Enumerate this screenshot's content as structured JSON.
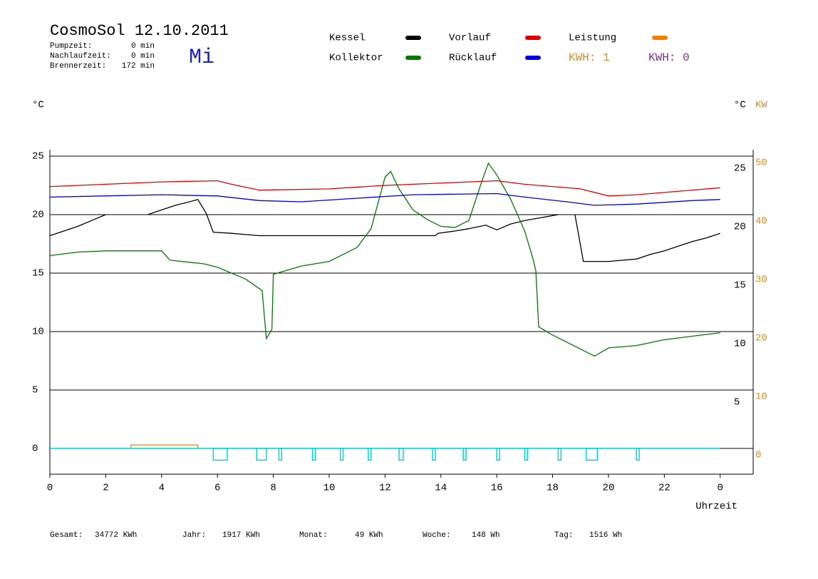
{
  "header": {
    "title": "CosmoSol 12.10.2011",
    "weekday": "Mi",
    "stats": [
      [
        "Pumpzeit:",
        "0 min"
      ],
      [
        "Nachlaufzeit:",
        "0 min"
      ],
      [
        "Brennerzeit:",
        "172 min"
      ]
    ],
    "kwh": [
      {
        "text": "KWH: 1",
        "color": "#e08a1e"
      },
      {
        "text": "KWH: 0",
        "color": "#8b2a8b"
      }
    ]
  },
  "chart_data": {
    "type": "line",
    "y_unit": "°C",
    "y2_unit_c": "°C",
    "y2_unit": "KW",
    "x_label": "Uhrzeit",
    "xlim": [
      0,
      25.18
    ],
    "xticks": [
      0,
      2,
      4,
      6,
      8,
      10,
      12,
      14,
      16,
      18,
      20,
      22,
      {
        "value": 24,
        "label": "0"
      }
    ],
    "ylim": [
      -2.2,
      25.55
    ],
    "yticks": [
      0,
      5,
      10,
      15,
      20,
      25
    ],
    "yticks_right": [
      5,
      10,
      15,
      20,
      25
    ],
    "y2lim": [
      -4.4,
      51.1
    ],
    "y2ticks": [
      0,
      10,
      20,
      30,
      40,
      50
    ],
    "grid": true,
    "series": [
      {
        "name": "Kessel",
        "color": "#000000",
        "x": [
          0,
          0.5,
          1,
          1.5,
          2,
          2.5,
          3.5,
          4,
          4.5,
          5,
          5.3,
          5.6,
          5.85,
          6.5,
          7,
          7.5,
          10,
          13.8,
          13.9,
          14.5,
          15,
          15.6,
          16,
          16.5,
          17,
          17.5,
          18.2,
          18.5,
          18.8,
          19.1,
          20,
          21,
          21.5,
          22,
          22.5,
          23,
          23.5,
          24
        ],
        "values": [
          18.2,
          18.6,
          19.0,
          19.5,
          20.0,
          null,
          20.0,
          20.4,
          20.8,
          21.1,
          21.3,
          20.1,
          18.5,
          18.4,
          18.3,
          18.2,
          18.2,
          18.2,
          18.4,
          18.6,
          18.8,
          19.1,
          18.7,
          19.2,
          19.5,
          19.7,
          20.0,
          null,
          20.0,
          16.0,
          16.0,
          16.2,
          16.6,
          16.9,
          17.3,
          17.7,
          18.0,
          18.4
        ]
      },
      {
        "name": "Kollektor",
        "color": "#007a00",
        "x": [
          0,
          1,
          2,
          3,
          4,
          4.3,
          5.5,
          6,
          7,
          7.6,
          7.75,
          7.95,
          8.0,
          9,
          10,
          11,
          11.5,
          12,
          12.2,
          12.5,
          13,
          13.5,
          14,
          14.5,
          15,
          15.5,
          15.7,
          16,
          16.5,
          17,
          17.3,
          17.4,
          17.5,
          18,
          19,
          19.5,
          20,
          21,
          22,
          23,
          24
        ],
        "values": [
          16.5,
          16.8,
          16.9,
          16.9,
          16.9,
          16.1,
          15.8,
          15.5,
          14.5,
          13.5,
          9.4,
          10.2,
          14.9,
          15.6,
          16.0,
          17.2,
          18.8,
          23.2,
          23.7,
          22.2,
          20.4,
          19.6,
          19.0,
          18.9,
          19.5,
          23.1,
          24.4,
          23.4,
          21.3,
          18.6,
          16.2,
          15.2,
          10.4,
          9.7,
          8.5,
          7.9,
          8.6,
          8.8,
          9.3,
          9.6,
          9.9
        ]
      },
      {
        "name": "Vorlauf",
        "color": "#e00000",
        "x": [
          0,
          2,
          4,
          6,
          6.5,
          7.5,
          10,
          12,
          15,
          16,
          17,
          19,
          20,
          21,
          23,
          24
        ],
        "values": [
          22.4,
          22.6,
          22.8,
          22.9,
          22.6,
          22.1,
          22.2,
          22.5,
          22.8,
          22.9,
          22.6,
          22.2,
          21.6,
          21.7,
          22.1,
          22.3
        ]
      },
      {
        "name": "Rücklauf",
        "color": "#0000e0",
        "x": [
          0,
          4,
          6,
          7.5,
          9,
          11,
          13,
          16,
          17,
          18.5,
          19.5,
          21,
          23,
          24
        ],
        "values": [
          21.5,
          21.7,
          21.6,
          21.2,
          21.1,
          21.4,
          21.7,
          21.8,
          21.5,
          21.1,
          20.8,
          20.9,
          21.2,
          21.3
        ]
      },
      {
        "name": "Leistung",
        "color": "#f08000",
        "axis": "y2",
        "x": [
          2.9,
          2.9,
          5.3,
          5.3
        ],
        "values": [
          0,
          0.6,
          0.6,
          0
        ]
      }
    ],
    "pump": {
      "color": "#00d8d8",
      "low": -1,
      "intervals": [
        [
          5.85,
          6.35
        ],
        [
          7.4,
          7.75
        ],
        [
          8.2,
          8.3
        ],
        [
          9.4,
          9.5
        ],
        [
          10.4,
          10.5
        ],
        [
          11.4,
          11.5
        ],
        [
          12.5,
          12.65
        ],
        [
          13.7,
          13.8
        ],
        [
          14.8,
          14.9
        ],
        [
          16.0,
          16.1
        ],
        [
          17.0,
          17.1
        ],
        [
          18.2,
          18.3
        ],
        [
          19.2,
          19.6
        ],
        [
          21.0,
          21.1
        ]
      ]
    }
  },
  "footer": [
    [
      "Gesamt:",
      "34772 KWh"
    ],
    [
      "Jahr:",
      "1917 KWh"
    ],
    [
      "Monat:",
      "49 KWh"
    ],
    [
      "Woche:",
      "148 Wh"
    ],
    [
      "Tag:",
      "1516 Wh"
    ]
  ]
}
